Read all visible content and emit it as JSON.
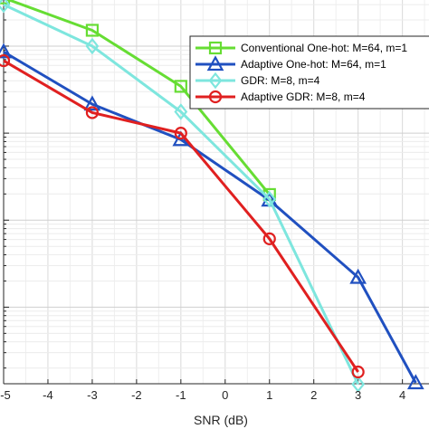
{
  "chart_data": {
    "type": "line",
    "title": "",
    "xlabel": "SNR (dB)",
    "ylabel": "",
    "xlim": [
      -5,
      4.6
    ],
    "ylim_log10": [
      -6.88,
      -2.47
    ],
    "yscale": "log",
    "grid": true,
    "legend_position": "top-right",
    "xticks": [
      -5,
      -4,
      -3,
      -2,
      -1,
      0,
      1,
      2,
      3,
      4
    ],
    "xtick_labels": [
      "-5",
      "-4",
      "-3",
      "-2",
      "-1",
      "0",
      "1",
      "2",
      "3",
      "4"
    ],
    "series": [
      {
        "name": "Conventional One-hot: M=64, m=1",
        "color": "#66dd33",
        "marker": "square",
        "x": [
          -5,
          -3,
          -1,
          1
        ],
        "y": [
          0.00358,
          0.00152,
          0.000345,
          1.97e-05
        ]
      },
      {
        "name": "Adaptive One-hot: M=64, m=1",
        "color": "#2050c0",
        "marker": "triangle",
        "x": [
          -5,
          -3,
          -1,
          1,
          3,
          4.3
        ],
        "y": [
          0.00086,
          0.000215,
          8.43e-05,
          1.7e-05,
          2.2e-06,
          1.35e-07
        ]
      },
      {
        "name": "GDR: M=8, m=4",
        "color": "#7ee6de",
        "marker": "diamond",
        "x": [
          -5,
          -3,
          -1,
          1,
          3
        ],
        "y": [
          0.003,
          0.001,
          0.000176,
          1.74e-05,
          1.3e-07
        ]
      },
      {
        "name": "Adaptive GDR: M=8, m=4",
        "color": "#e02020",
        "marker": "circle",
        "x": [
          -5,
          -3,
          -1,
          1,
          3
        ],
        "y": [
          0.00068,
          0.000172,
          0.0001,
          6.1e-06,
          1.8e-07
        ]
      }
    ]
  }
}
